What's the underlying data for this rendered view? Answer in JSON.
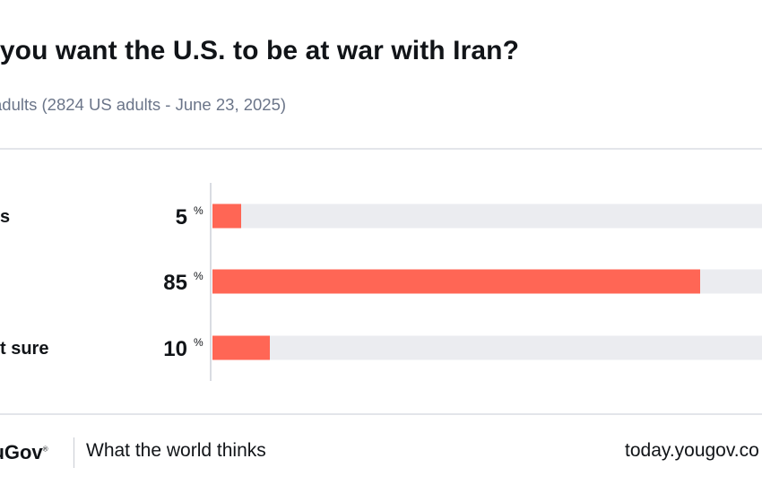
{
  "title": "o you want the U.S. to be at war with Iran?",
  "subtitle": "adults (2824 US adults - June 23, 2025)",
  "chart_data": {
    "type": "bar",
    "orientation": "horizontal",
    "categories": [
      "s",
      "",
      "t sure"
    ],
    "values": [
      5,
      85,
      10
    ],
    "value_labels": [
      "5",
      "85",
      "10"
    ],
    "unit": "%",
    "xlim": [
      0,
      100
    ],
    "bar_color": "#ff6655",
    "track_color": "#ebecf0"
  },
  "footer": {
    "logo": "ouGov",
    "logo_mark": "®",
    "tagline": "What the world thinks",
    "url": "today.yougov.co"
  }
}
